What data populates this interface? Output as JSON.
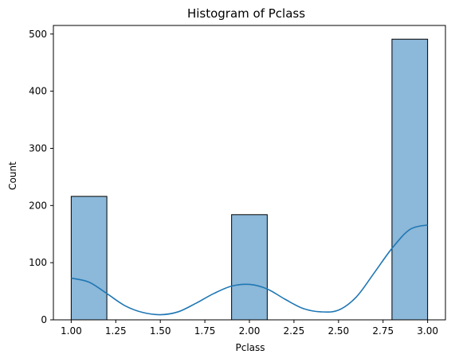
{
  "chart_data": {
    "type": "bar",
    "title": "Histogram of Pclass",
    "xlabel": "Pclass",
    "ylabel": "Count",
    "xlim": [
      0.9,
      3.1
    ],
    "ylim": [
      0,
      515
    ],
    "x_ticks": [
      1.0,
      1.25,
      1.5,
      1.75,
      2.0,
      2.25,
      2.5,
      2.75,
      3.0
    ],
    "x_tick_labels": [
      "1.00",
      "1.25",
      "1.50",
      "1.75",
      "2.00",
      "2.25",
      "2.50",
      "2.75",
      "3.00"
    ],
    "y_ticks": [
      0,
      100,
      200,
      300,
      400,
      500
    ],
    "y_tick_labels": [
      "0",
      "100",
      "200",
      "300",
      "400",
      "500"
    ],
    "bars": [
      {
        "x0": 1.0,
        "x1": 1.2,
        "count": 216
      },
      {
        "x0": 1.9,
        "x1": 2.1,
        "count": 184
      },
      {
        "x0": 2.8,
        "x1": 3.0,
        "count": 491
      }
    ],
    "kde": {
      "x": [
        1.0,
        1.1,
        1.2,
        1.3,
        1.4,
        1.5,
        1.6,
        1.7,
        1.8,
        1.9,
        2.0,
        2.1,
        2.2,
        2.3,
        2.4,
        2.5,
        2.6,
        2.7,
        2.8,
        2.9,
        3.0
      ],
      "y": [
        73,
        66,
        46,
        25,
        13,
        9,
        14,
        29,
        46,
        59,
        62,
        54,
        36,
        20,
        14,
        17,
        40,
        82,
        125,
        158,
        166
      ]
    },
    "colors": {
      "bar_fill": "#8cb8d9",
      "bar_edge": "#000000",
      "kde_line": "#1f77b4"
    },
    "grid": false,
    "legend": "none"
  }
}
